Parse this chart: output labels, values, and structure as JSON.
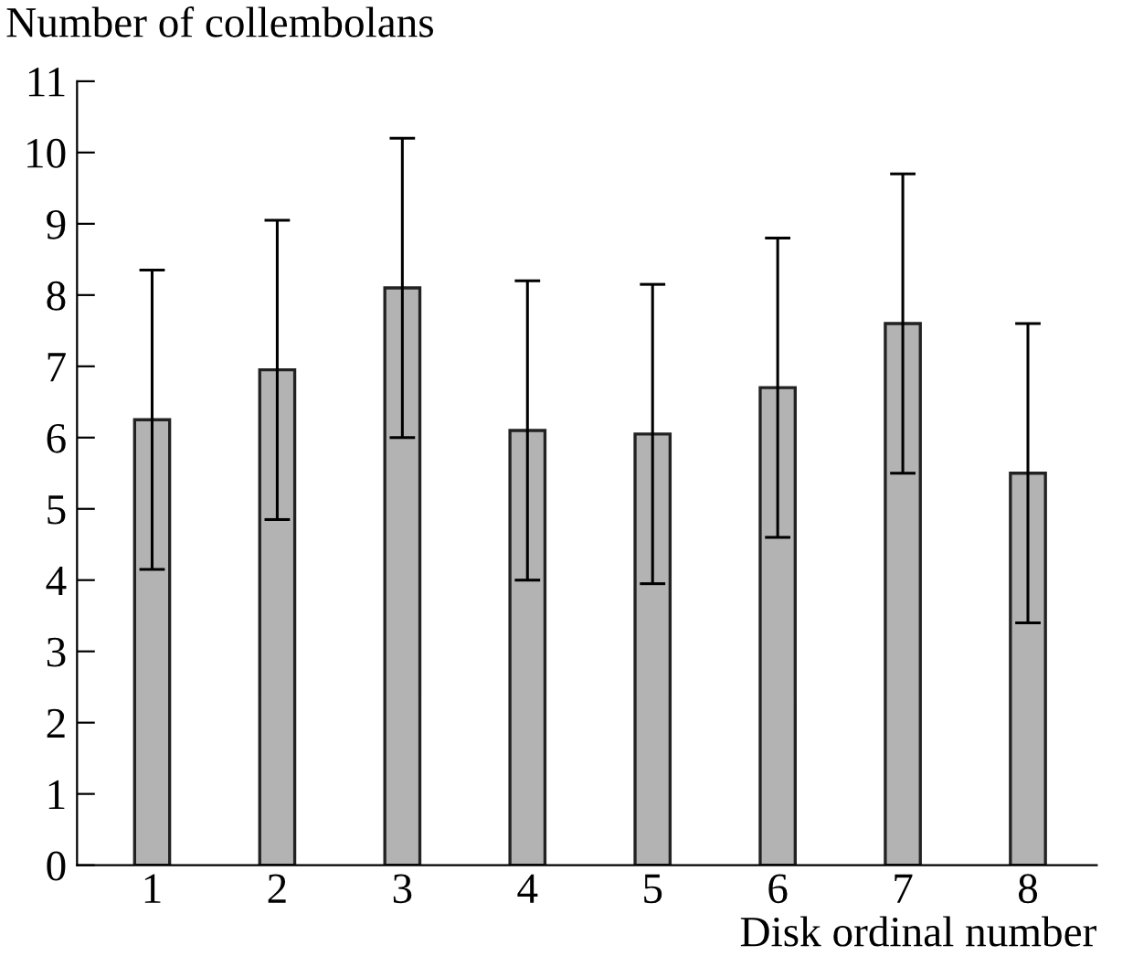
{
  "chart_data": {
    "type": "bar",
    "ylabel": "Number of collembolans",
    "xlabel": "Disk ordinal number",
    "categories": [
      "1",
      "2",
      "3",
      "4",
      "5",
      "6",
      "7",
      "8"
    ],
    "values": [
      6.25,
      6.95,
      8.1,
      6.1,
      6.05,
      6.7,
      7.6,
      5.5
    ],
    "errors": [
      2.1,
      2.1,
      2.1,
      2.1,
      2.1,
      2.1,
      2.1,
      2.1
    ],
    "color": "#b3b3b3",
    "ylim": [
      0,
      11
    ],
    "yticks": [
      0,
      1,
      2,
      3,
      4,
      5,
      6,
      7,
      8,
      9,
      10,
      11
    ],
    "grid": false
  }
}
